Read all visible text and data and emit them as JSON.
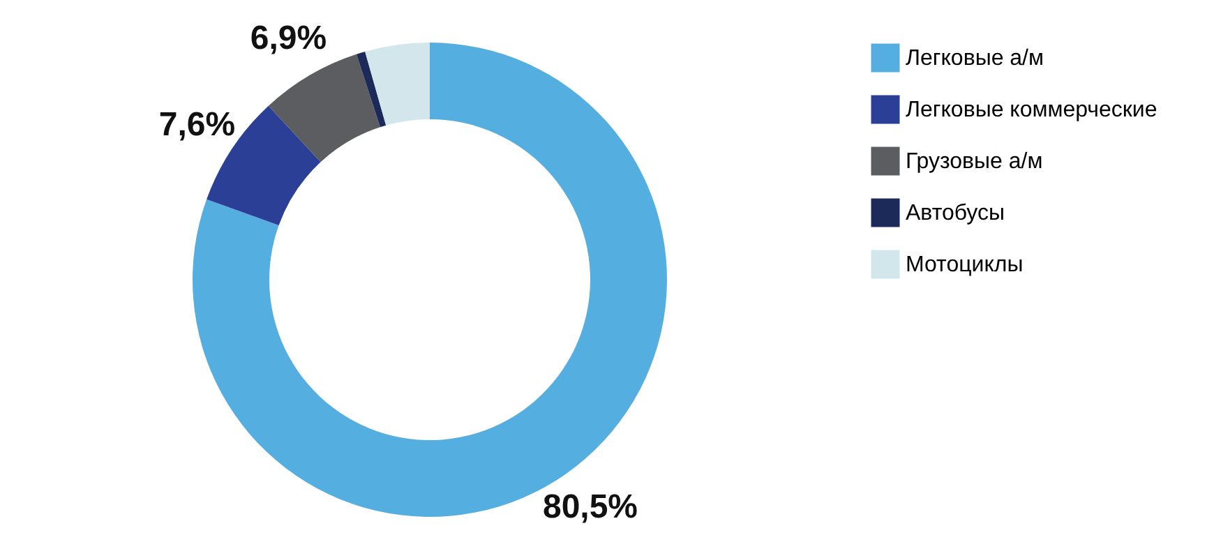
{
  "chart_data": {
    "type": "donut",
    "categories": [
      "Легковые а/м",
      "Легковые коммерческие",
      "Грузовые а/м",
      "Автобусы",
      "Мотоциклы"
    ],
    "values": [
      80.5,
      7.6,
      6.9,
      0.6,
      4.4
    ],
    "value_labels": [
      "80,5%",
      "7,6%",
      "6,9%",
      null,
      null
    ],
    "colors": [
      "#55aee0",
      "#2b3f96",
      "#5c5d61",
      "#1c2a5a",
      "#d3e6ec"
    ],
    "legend": "right"
  }
}
